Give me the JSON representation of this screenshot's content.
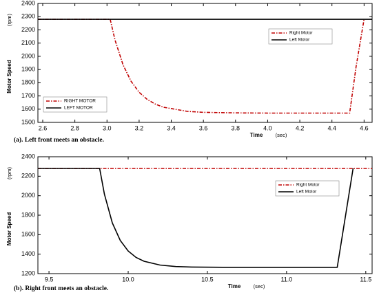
{
  "chart_data": [
    {
      "type": "line",
      "x": [
        2.57,
        2.8,
        3.0,
        3.02,
        3.05,
        3.1,
        3.15,
        3.2,
        3.25,
        3.3,
        3.35,
        3.5,
        3.6,
        3.8,
        4.0,
        4.2,
        4.4,
        4.51,
        4.55,
        4.6,
        4.65
      ],
      "series": [
        {
          "name": "Right Motor",
          "color": "#c00000",
          "dash": "dashdot",
          "values": [
            2280,
            2280,
            2280,
            2280,
            2123,
            1935,
            1811,
            1728,
            1674,
            1639,
            1615,
            1583,
            1576,
            1572,
            1570,
            1570,
            1570,
            1570,
            1920,
            2280,
            null
          ]
        },
        {
          "name": "Left Motor",
          "color": "#000000",
          "dash": "solid",
          "values": [
            2280,
            2280,
            2280,
            2280,
            2280,
            2280,
            2280,
            2280,
            2280,
            2280,
            2280,
            2280,
            2280,
            2280,
            2280,
            2280,
            2280,
            2280,
            2280,
            2280,
            2280
          ]
        }
      ],
      "legend_labels_alt": [
        "RIGHT MOTOR",
        "LEFT MOTOR"
      ],
      "xlim": [
        2.57,
        4.65
      ],
      "ylim": [
        1500,
        2400
      ],
      "xticks": [
        2.6,
        2.8,
        {
          "value": 3,
          "label": "3.0"
        },
        3.2,
        3.4,
        3.6,
        3.8,
        {
          "value": 4,
          "label": "4.0"
        },
        4.2,
        4.4,
        4.6
      ],
      "yticks": [
        1500,
        1600,
        1700,
        1800,
        1900,
        2000,
        2100,
        2200,
        2300,
        2400
      ],
      "xlabel": "Time",
      "xlabel_unit": "(sec)",
      "ylabel": "Motor Speed",
      "ylabel_unit": "(rpm)",
      "caption": "(a). Left front meets an obstacle.",
      "grid": false
    },
    {
      "type": "line",
      "x": [
        9.43,
        9.6,
        9.82,
        9.85,
        9.9,
        9.95,
        10.0,
        10.05,
        10.1,
        10.2,
        10.3,
        10.4,
        10.6,
        10.8,
        11.0,
        11.2,
        11.32,
        11.37,
        11.42,
        11.54
      ],
      "series": [
        {
          "name": "Right Motor",
          "color": "#c00000",
          "dash": "dashdot",
          "values": [
            2280,
            2280,
            2280,
            2280,
            2280,
            2280,
            2280,
            2280,
            2280,
            2280,
            2280,
            2280,
            2280,
            2280,
            2280,
            2280,
            2280,
            2280,
            2280,
            2280
          ]
        },
        {
          "name": "Left Motor",
          "color": "#000000",
          "dash": "solid",
          "values": [
            2280,
            2280,
            2280,
            2017,
            1721,
            1541,
            1432,
            1366,
            1327,
            1288,
            1273,
            1268,
            1265,
            1265,
            1265,
            1265,
            1265,
            1772,
            2280,
            null
          ]
        }
      ],
      "xlim": [
        9.43,
        11.54
      ],
      "ylim": [
        1200,
        2400
      ],
      "xticks": [
        9.5,
        {
          "value": 10,
          "label": "10.0"
        },
        10.5,
        {
          "value": 11,
          "label": "11.0"
        },
        11.5
      ],
      "yticks": [
        1200,
        1400,
        1600,
        1800,
        2000,
        2200,
        2400
      ],
      "xlabel": "Time",
      "xlabel_unit": "(sec)",
      "ylabel": "Motor Speed",
      "ylabel_unit": "(rpm)",
      "caption": "(b). Right front meets an obstacle.",
      "grid": false
    }
  ]
}
